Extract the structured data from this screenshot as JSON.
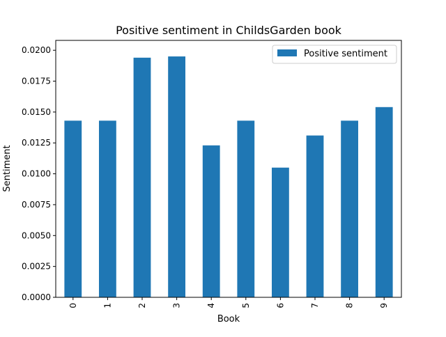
{
  "chart_data": {
    "type": "bar",
    "title": "Positive sentiment in ChildsGarden book",
    "xlabel": "Book",
    "ylabel": "Sentiment",
    "categories": [
      "0",
      "1",
      "2",
      "3",
      "4",
      "5",
      "6",
      "7",
      "8",
      "9"
    ],
    "series": [
      {
        "name": "Positive sentiment",
        "color": "#1f77b4",
        "values": [
          0.0143,
          0.0143,
          0.0194,
          0.0195,
          0.0123,
          0.0143,
          0.0105,
          0.0131,
          0.0143,
          0.0154
        ]
      }
    ],
    "ylim": [
      0,
      0.0208
    ],
    "yticks": [
      "0.0000",
      "0.0025",
      "0.0050",
      "0.0075",
      "0.0100",
      "0.0125",
      "0.0150",
      "0.0175",
      "0.0200"
    ],
    "grid": false,
    "legend": "top-right"
  }
}
